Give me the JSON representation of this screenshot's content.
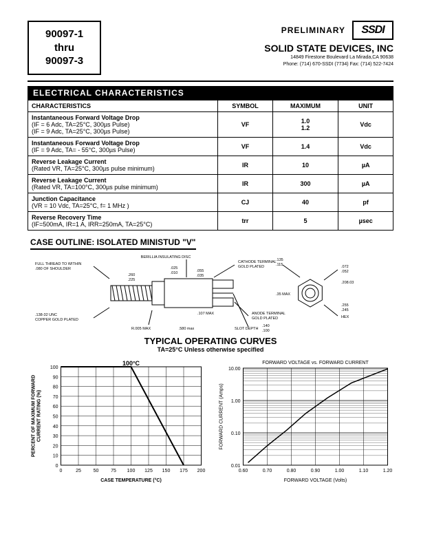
{
  "header": {
    "part_top": "90097-1",
    "part_mid": "thru",
    "part_bot": "90097-3",
    "preliminary": "PRELIMINARY",
    "logo_text": "SSDI",
    "company": "SOLID STATE DEVICES, INC",
    "addr1": "14849 Firestone Boulevard   La Mirada,CA 90638",
    "addr2": "Phone: (714) 670-SSDI (7734)   Fax: (714) 522-7424"
  },
  "sections": {
    "elec": "ELECTRICAL CHARACTERISTICS",
    "case": "CASE OUTLINE: ISOLATED  MINISTUD \"V\"",
    "curves": "TYPICAL OPERATING CURVES",
    "curves_sub": "TA=25°C Unless otherwise specified"
  },
  "spec_table": {
    "headers": [
      "CHARACTERISTICS",
      "SYMBOL",
      "MAXIMUM",
      "UNIT"
    ],
    "rows": [
      {
        "name": "Instantaneous Forward Voltage Drop",
        "cond": "(IF =  6  Adc, TA=25°C, 300µs Pulse)\n(IF =  9  Adc, TA=25°C, 300µs Pulse)",
        "symbol": "VF",
        "max": "1.0\n1.2",
        "unit": "Vdc"
      },
      {
        "name": "Instantaneous Forward Voltage Drop",
        "cond": "(IF =  9  Adc, TA= - 55°C, 300µs Pulse)",
        "symbol": "VF",
        "max": "1.4",
        "unit": "Vdc"
      },
      {
        "name": "Reverse Leakage Current",
        "cond": "(Rated VR, TA=25°C, 300µs pulse minimum)",
        "symbol": "IR",
        "max": "10",
        "unit": "µA"
      },
      {
        "name": "Reverse Leakage Current",
        "cond": "(Rated VR, TA=100°C, 300µs pulse minimum)",
        "symbol": "IR",
        "max": "300",
        "unit": "µA"
      },
      {
        "name": "Junction Capacitance",
        "cond": "(VR =  10 Vdc, TA=25°C, f= 1 MHz )",
        "symbol": "CJ",
        "max": "40",
        "unit": "pf"
      },
      {
        "name": "Reverse Recovery Time",
        "cond": "(IF=500mA, IR=1 A, IRR=250mA, TA=25°C)",
        "symbol": "trr",
        "max": "5",
        "unit": "µsec"
      }
    ]
  },
  "case_diagram": {
    "labels": {
      "l1": "FULL THREAD TO WITHIN\n.080 OF SHOULDER",
      "l2": ".138-32 UNC\nCOPPER GOLD PLATED",
      "l3": "R.005 MAX",
      "l4": "BERILLIA INSULATING DISC",
      "l5": "CATHODE TERMINAL\nGOLD PLATED",
      "l6": "ANODE TERMINAL\nGOLD PLATED",
      "l7": "SLOT DEPTH",
      "hex": "HEX"
    },
    "dims": {
      "d260": ".260\n.225",
      "d025": ".025\n.010",
      "d055": ".055\n.035",
      "d107": ".107 MAX",
      "d580": ".580 max",
      "d135": ".135\n.115",
      "d35": ".35 MAX",
      "d140": ".140\n.100",
      "d072": ".072\n.052",
      "d20803": ".208.03",
      "d255": ".255\n.245"
    },
    "colors": {
      "line": "#000000",
      "bg": "#ffffff"
    }
  },
  "chart1": {
    "type": "line",
    "title": "100°C",
    "xlabel": "CASE TEMPERATURE (°C)",
    "ylabel": "PERCENT OF MAXIMUM FORWARD\nCURRENT RATING (%)",
    "xlim": [
      0,
      200
    ],
    "xtick_step": 25,
    "ylim": [
      0,
      100
    ],
    "ytick_step": 10,
    "data_x": [
      0,
      100,
      175
    ],
    "data_y": [
      100,
      100,
      0
    ],
    "line_color": "#000000",
    "line_width": 2,
    "grid_color": "#000000",
    "bg": "#ffffff",
    "label_fontsize": 7,
    "tick_fontsize": 7
  },
  "chart2": {
    "type": "line-log",
    "title": "FORWARD VOLTAGE vs. FORWARD CURRENT",
    "xlabel": "FORWARD VOLTAGE  (Volts)",
    "ylabel": "FORWARD  CURRENT  (Amps)",
    "xlim": [
      0.6,
      1.2
    ],
    "xtick_step": 0.1,
    "yticks": [
      0.01,
      0.1,
      1.0,
      10.0
    ],
    "data_x": [
      0.62,
      0.7,
      0.78,
      0.86,
      0.95,
      1.05,
      1.2
    ],
    "data_y": [
      0.012,
      0.04,
      0.12,
      0.4,
      1.2,
      3.5,
      9.5
    ],
    "line_color": "#000000",
    "line_width": 1.5,
    "grid_color": "#000000",
    "bg": "#ffffff",
    "label_fontsize": 7,
    "tick_fontsize": 7
  }
}
